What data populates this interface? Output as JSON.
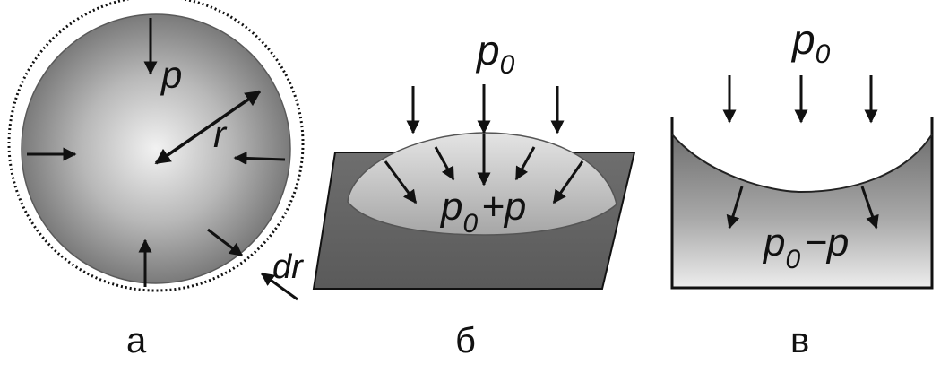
{
  "figure": {
    "panel_a": {
      "caption": "а",
      "label_pressure": "p",
      "label_radius": "r",
      "label_dr": "dr"
    },
    "panel_b": {
      "caption": "б",
      "label_outside_base": "p",
      "label_outside_sub": "0",
      "label_inside_base": "p",
      "label_inside_sub": "0",
      "label_inside_rest": "+p"
    },
    "panel_c": {
      "caption": "в",
      "label_outside_base": "p",
      "label_outside_sub": "0",
      "label_inside_base": "p",
      "label_inside_sub": "0",
      "label_inside_rest": "−p"
    }
  },
  "colors": {
    "ink": "#111111",
    "shade_dark": "#6a6a6a",
    "shade_mid": "#9a9a9a",
    "shade_light": "#e8e8e8",
    "plate": "#6e6e6e"
  }
}
